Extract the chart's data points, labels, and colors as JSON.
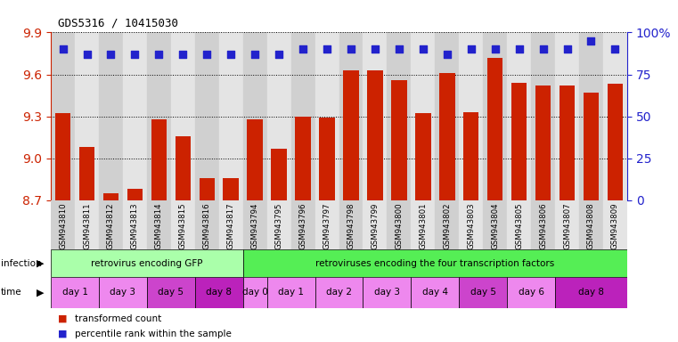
{
  "title": "GDS5316 / 10415030",
  "samples": [
    "GSM943810",
    "GSM943811",
    "GSM943812",
    "GSM943813",
    "GSM943814",
    "GSM943815",
    "GSM943816",
    "GSM943817",
    "GSM943794",
    "GSM943795",
    "GSM943796",
    "GSM943797",
    "GSM943798",
    "GSM943799",
    "GSM943800",
    "GSM943801",
    "GSM943802",
    "GSM943803",
    "GSM943804",
    "GSM943805",
    "GSM943806",
    "GSM943807",
    "GSM943808",
    "GSM943809"
  ],
  "bar_values": [
    9.32,
    9.08,
    8.75,
    8.78,
    9.28,
    9.16,
    8.86,
    8.86,
    9.28,
    9.07,
    9.3,
    9.29,
    9.63,
    9.63,
    9.56,
    9.32,
    9.61,
    9.33,
    9.72,
    9.54,
    9.52,
    9.52,
    9.47,
    9.53
  ],
  "dot_pct": [
    90,
    87,
    87,
    87,
    87,
    87,
    87,
    87,
    87,
    87,
    90,
    90,
    90,
    90,
    90,
    90,
    87,
    90,
    90,
    90,
    90,
    90,
    95,
    90
  ],
  "ylim_left": [
    8.7,
    9.9
  ],
  "yticks_left": [
    8.7,
    9.0,
    9.3,
    9.6,
    9.9
  ],
  "ylim_right": [
    0,
    100
  ],
  "yticks_right": [
    0,
    25,
    50,
    75,
    100
  ],
  "ytick_labels_right": [
    "0",
    "25",
    "50",
    "75",
    "100%"
  ],
  "bar_color": "#cc2200",
  "dot_color": "#2222cc",
  "dot_size": 28,
  "infection_groups": [
    {
      "label": "retrovirus encoding GFP",
      "start": 0,
      "end": 8,
      "color": "#aaffaa"
    },
    {
      "label": "retroviruses encoding the four transcription factors",
      "start": 8,
      "end": 24,
      "color": "#55ee55"
    }
  ],
  "time_groups": [
    {
      "label": "day 1",
      "start": 0,
      "end": 2,
      "color": "#ee88ee"
    },
    {
      "label": "day 3",
      "start": 2,
      "end": 4,
      "color": "#ee88ee"
    },
    {
      "label": "day 5",
      "start": 4,
      "end": 6,
      "color": "#cc44cc"
    },
    {
      "label": "day 8",
      "start": 6,
      "end": 8,
      "color": "#bb22bb"
    },
    {
      "label": "day 0",
      "start": 8,
      "end": 9,
      "color": "#ee88ee"
    },
    {
      "label": "day 1",
      "start": 9,
      "end": 11,
      "color": "#ee88ee"
    },
    {
      "label": "day 2",
      "start": 11,
      "end": 13,
      "color": "#ee88ee"
    },
    {
      "label": "day 3",
      "start": 13,
      "end": 15,
      "color": "#ee88ee"
    },
    {
      "label": "day 4",
      "start": 15,
      "end": 17,
      "color": "#ee88ee"
    },
    {
      "label": "day 5",
      "start": 17,
      "end": 19,
      "color": "#cc44cc"
    },
    {
      "label": "day 6",
      "start": 19,
      "end": 21,
      "color": "#ee88ee"
    },
    {
      "label": "day 8",
      "start": 21,
      "end": 24,
      "color": "#bb22bb"
    }
  ],
  "legend_items": [
    {
      "label": "transformed count",
      "color": "#cc2200"
    },
    {
      "label": "percentile rank within the sample",
      "color": "#2222cc"
    }
  ],
  "left_tick_color": "#cc2200",
  "right_tick_color": "#2222cc",
  "xtick_bg_even": "#d0d0d0",
  "xtick_bg_odd": "#e4e4e4"
}
